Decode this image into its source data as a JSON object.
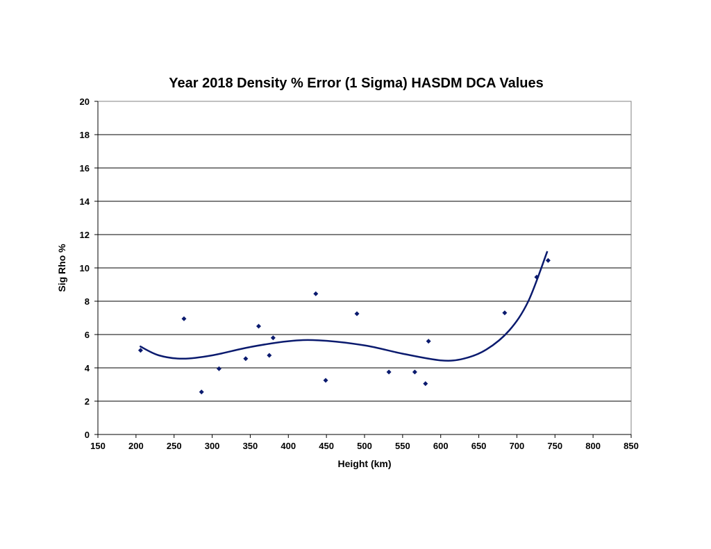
{
  "chart_data": {
    "type": "scatter",
    "title": "Year 2018 Density % Error (1 Sigma) HASDM DCA Values",
    "xlabel": "Height (km)",
    "ylabel": "Sig Rho %",
    "xlim": [
      150,
      850
    ],
    "ylim": [
      0,
      20
    ],
    "x_ticks": [
      150,
      200,
      250,
      300,
      350,
      400,
      450,
      500,
      550,
      600,
      650,
      700,
      750,
      800,
      850
    ],
    "y_ticks": [
      0,
      2,
      4,
      6,
      8,
      10,
      12,
      14,
      16,
      18,
      20
    ],
    "grid": "horizontal",
    "points": [
      {
        "x": 206,
        "y": 5.05
      },
      {
        "x": 263,
        "y": 6.95
      },
      {
        "x": 286,
        "y": 2.55
      },
      {
        "x": 309,
        "y": 3.95
      },
      {
        "x": 344,
        "y": 4.55
      },
      {
        "x": 361,
        "y": 6.5
      },
      {
        "x": 375,
        "y": 4.75
      },
      {
        "x": 380,
        "y": 5.8
      },
      {
        "x": 436,
        "y": 8.45
      },
      {
        "x": 449,
        "y": 3.25
      },
      {
        "x": 490,
        "y": 7.25
      },
      {
        "x": 532,
        "y": 3.75
      },
      {
        "x": 566,
        "y": 3.75
      },
      {
        "x": 580,
        "y": 3.05
      },
      {
        "x": 584,
        "y": 5.6
      },
      {
        "x": 684,
        "y": 7.3
      },
      {
        "x": 726,
        "y": 9.45
      },
      {
        "x": 741,
        "y": 10.45
      }
    ],
    "trendline": {
      "type": "polynomial",
      "points": [
        {
          "x": 205,
          "y": 5.3
        },
        {
          "x": 230,
          "y": 4.75
        },
        {
          "x": 262,
          "y": 4.55
        },
        {
          "x": 300,
          "y": 4.75
        },
        {
          "x": 350,
          "y": 5.25
        },
        {
          "x": 400,
          "y": 5.6
        },
        {
          "x": 440,
          "y": 5.65
        },
        {
          "x": 500,
          "y": 5.35
        },
        {
          "x": 550,
          "y": 4.85
        },
        {
          "x": 600,
          "y": 4.45
        },
        {
          "x": 630,
          "y": 4.55
        },
        {
          "x": 660,
          "y": 5.1
        },
        {
          "x": 690,
          "y": 6.25
        },
        {
          "x": 715,
          "y": 8.0
        },
        {
          "x": 740,
          "y": 11.0
        }
      ]
    },
    "colors": {
      "marker": "#0a1a6e",
      "trendline": "#0a1a6e",
      "grid": "#000000",
      "plot_border": "#808080"
    }
  }
}
